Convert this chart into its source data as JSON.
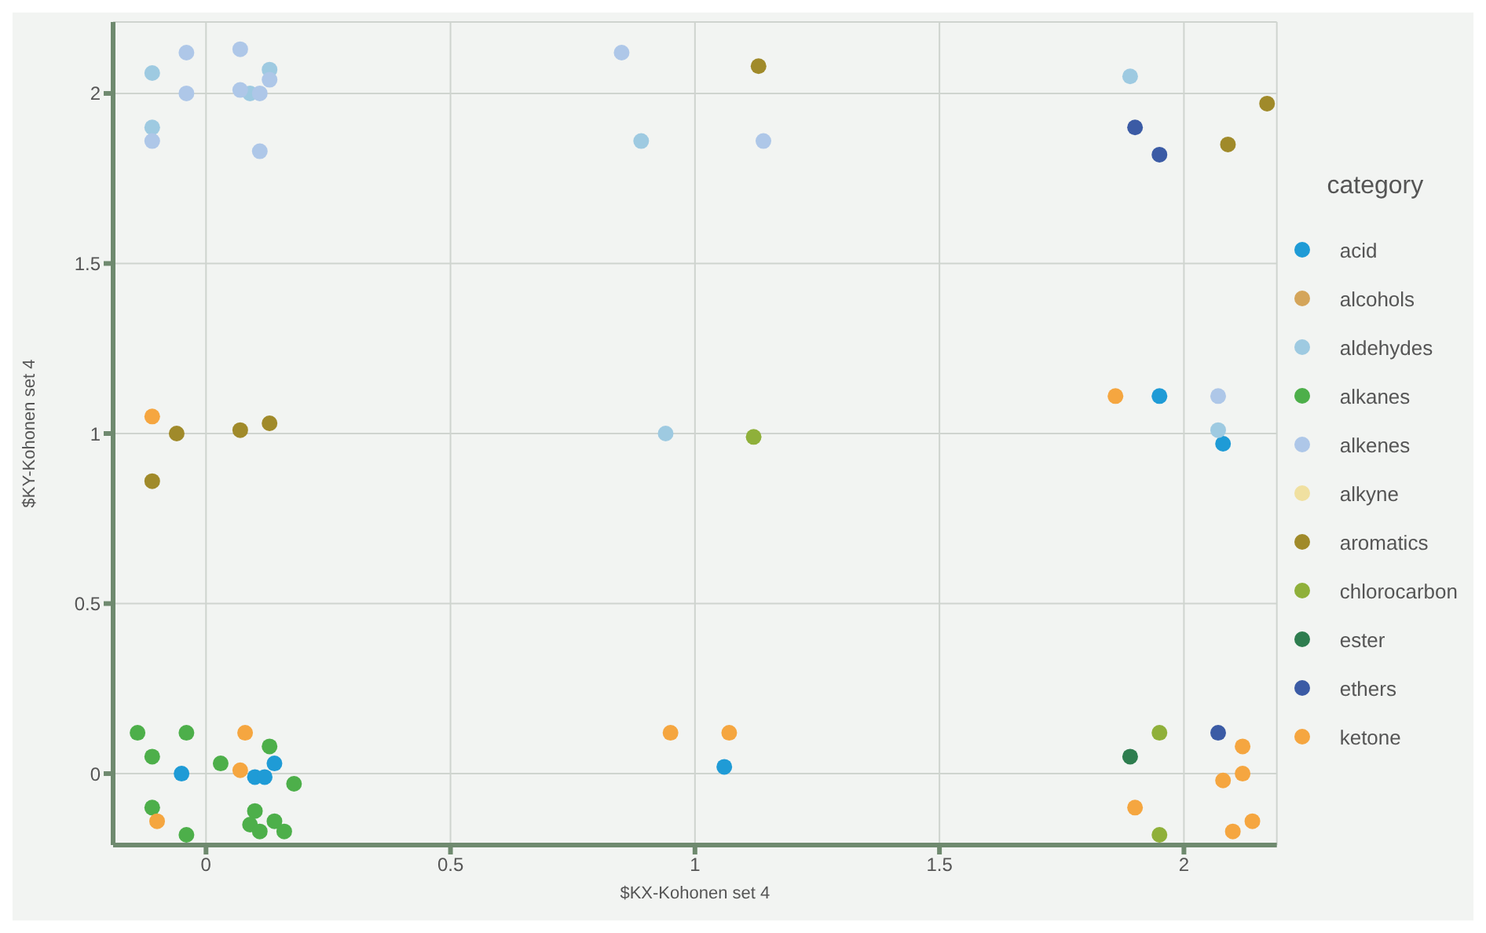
{
  "chart_data": {
    "type": "scatter",
    "xlabel": "$KX-Kohonen set 4",
    "ylabel": "$KY-Kohonen set 4",
    "legend_title": "category",
    "legend": "right",
    "grid": true,
    "marker": "circle",
    "xlim": [
      -0.19,
      2.19
    ],
    "ylim": [
      -0.21,
      2.21
    ],
    "xticks": [
      0,
      0.5,
      1,
      1.5,
      2
    ],
    "yticks": [
      0,
      0.5,
      1,
      1.5,
      2
    ],
    "series": [
      {
        "name": "acid",
        "color": "#1f9bd6",
        "x": [
          -0.05,
          0.14,
          0.1,
          0.12,
          1.06,
          1.95,
          2.08
        ],
        "values": [
          0.0,
          0.03,
          -0.01,
          -0.01,
          0.02,
          1.11,
          0.97
        ]
      },
      {
        "name": "alcohols",
        "color": "#d4a55a"
      },
      {
        "name": "aldehydes",
        "color": "#9ecae1",
        "x": [
          -0.11,
          0.09,
          0.13,
          -0.11,
          0.89,
          1.89,
          2.07,
          0.94
        ],
        "values": [
          2.06,
          2.0,
          2.07,
          1.9,
          1.86,
          2.05,
          1.01,
          1.0
        ]
      },
      {
        "name": "alkanes",
        "color": "#4daf4a",
        "x": [
          -0.14,
          -0.04,
          -0.11,
          0.03,
          0.13,
          0.18,
          -0.11,
          -0.04,
          0.1,
          0.09,
          0.11,
          0.14,
          0.16
        ],
        "values": [
          0.12,
          0.12,
          0.05,
          0.03,
          0.08,
          -0.03,
          -0.1,
          -0.18,
          -0.11,
          -0.15,
          -0.17,
          -0.14,
          -0.17
        ]
      },
      {
        "name": "alkenes",
        "color": "#aec7e8",
        "x": [
          -0.04,
          -0.04,
          0.07,
          0.07,
          0.11,
          0.13,
          -0.11,
          0.11,
          0.85,
          1.14,
          2.07
        ],
        "values": [
          2.12,
          2.0,
          2.13,
          2.01,
          2.0,
          2.04,
          1.86,
          1.83,
          2.12,
          1.86,
          1.11
        ]
      },
      {
        "name": "alkyne",
        "color": "#f0e0a0"
      },
      {
        "name": "aromatics",
        "color": "#a08a2a",
        "x": [
          -0.06,
          0.07,
          0.13,
          -0.11,
          1.13,
          2.17,
          2.09
        ],
        "values": [
          1.0,
          1.01,
          1.03,
          0.86,
          2.08,
          1.97,
          1.85
        ]
      },
      {
        "name": "chlorocarbon",
        "color": "#8fb03a",
        "x": [
          1.12,
          1.95,
          1.95
        ],
        "values": [
          0.99,
          0.12,
          -0.18
        ]
      },
      {
        "name": "ester",
        "color": "#2e7d4f",
        "x": [
          1.89
        ],
        "values": [
          0.05
        ]
      },
      {
        "name": "ethers",
        "color": "#3b5ba5",
        "x": [
          1.9,
          1.95,
          2.07
        ],
        "values": [
          1.9,
          1.82,
          0.12
        ]
      },
      {
        "name": "ketone",
        "color": "#f5a640",
        "x": [
          0.08,
          0.07,
          -0.11,
          -0.1,
          0.95,
          1.07,
          1.86,
          2.12,
          2.08,
          2.12,
          1.9,
          2.1,
          2.14
        ],
        "values": [
          0.12,
          0.01,
          1.05,
          -0.14,
          0.12,
          0.12,
          1.11,
          0.08,
          -0.02,
          0.0,
          -0.1,
          -0.17,
          -0.14
        ]
      }
    ]
  }
}
